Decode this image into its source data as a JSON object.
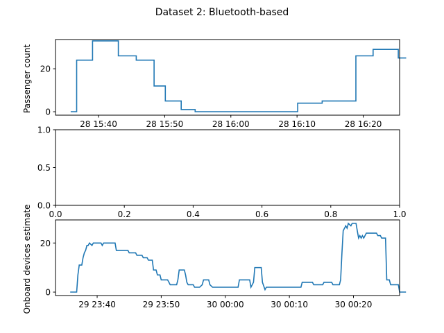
{
  "figure_title": "Dataset 2: Bluetooth-based",
  "chart_data": [
    {
      "type": "line",
      "step": true,
      "title": "",
      "xlabel": "",
      "ylabel": "Passenger count",
      "x_unit": "minutes since 28 15:00",
      "xlim": [
        33.5,
        85.5
      ],
      "ylim": [
        -1.6,
        33.6
      ],
      "xticks": [
        {
          "value": 40,
          "label": "28 15:40"
        },
        {
          "value": 50,
          "label": "28 15:50"
        },
        {
          "value": 60,
          "label": "28 16:00"
        },
        {
          "value": 70,
          "label": "28 16:10"
        },
        {
          "value": 80,
          "label": "28 16:20"
        }
      ],
      "yticks": [
        {
          "value": 0,
          "label": "0"
        },
        {
          "value": 20,
          "label": "20"
        }
      ],
      "series": [
        {
          "color": "#1f77b4",
          "points": [
            [
              35.8,
              0
            ],
            [
              36.7,
              0
            ],
            [
              36.7,
              24
            ],
            [
              39.1,
              24
            ],
            [
              39.1,
              33
            ],
            [
              43.0,
              33
            ],
            [
              43.0,
              26
            ],
            [
              45.7,
              26
            ],
            [
              45.7,
              24
            ],
            [
              48.4,
              24
            ],
            [
              48.4,
              12
            ],
            [
              50.1,
              12
            ],
            [
              50.1,
              5
            ],
            [
              52.5,
              5
            ],
            [
              52.5,
              1
            ],
            [
              54.6,
              1
            ],
            [
              54.6,
              0
            ],
            [
              70.1,
              0
            ],
            [
              70.1,
              4
            ],
            [
              73.8,
              4
            ],
            [
              73.8,
              5
            ],
            [
              78.9,
              5
            ],
            [
              78.9,
              26
            ],
            [
              81.5,
              26
            ],
            [
              81.5,
              29
            ],
            [
              85.3,
              29
            ],
            [
              85.3,
              25
            ],
            [
              86.5,
              25
            ]
          ]
        }
      ]
    },
    {
      "type": "line",
      "title": "",
      "xlabel": "",
      "ylabel": "",
      "xlim": [
        0,
        1
      ],
      "ylim": [
        0,
        1
      ],
      "xticks": [
        {
          "value": 0.0,
          "label": "0.0"
        },
        {
          "value": 0.2,
          "label": "0.2"
        },
        {
          "value": 0.4,
          "label": "0.4"
        },
        {
          "value": 0.6,
          "label": "0.6"
        },
        {
          "value": 0.8,
          "label": "0.8"
        },
        {
          "value": 1.0,
          "label": "1.0"
        }
      ],
      "yticks": [
        {
          "value": 0.0,
          "label": "0.0"
        },
        {
          "value": 0.5,
          "label": "0.5"
        },
        {
          "value": 1.0,
          "label": "1.0"
        }
      ],
      "series": []
    },
    {
      "type": "line",
      "step": true,
      "title": "",
      "xlabel": "",
      "ylabel": "Onboard devices estimate",
      "x_unit": "minutes since 29 23:00",
      "xlim": [
        33.5,
        87.2
      ],
      "ylim": [
        -1.4,
        29.4
      ],
      "xticks": [
        {
          "value": 40,
          "label": "29 23:40"
        },
        {
          "value": 50,
          "label": "29 23:50"
        },
        {
          "value": 60,
          "label": "30 00:00"
        },
        {
          "value": 70,
          "label": "30 00:10"
        },
        {
          "value": 80,
          "label": "30 00:20"
        }
      ],
      "yticks": [
        {
          "value": 0,
          "label": "0"
        },
        {
          "value": 20,
          "label": "20"
        }
      ],
      "series": [
        {
          "color": "#1f77b4",
          "points": [
            [
              35.8,
              0
            ],
            [
              36.8,
              0
            ],
            [
              37.0,
              7
            ],
            [
              37.2,
              11
            ],
            [
              37.6,
              11
            ],
            [
              37.8,
              14
            ],
            [
              38.0,
              16
            ],
            [
              38.2,
              17
            ],
            [
              38.4,
              19
            ],
            [
              38.6,
              19
            ],
            [
              38.8,
              20
            ],
            [
              39.2,
              19
            ],
            [
              39.4,
              20
            ],
            [
              40.6,
              20
            ],
            [
              40.8,
              19
            ],
            [
              41.0,
              20
            ],
            [
              42.8,
              20
            ],
            [
              43.0,
              17
            ],
            [
              44.8,
              17
            ],
            [
              45.0,
              16
            ],
            [
              46.0,
              16
            ],
            [
              46.2,
              15
            ],
            [
              47.0,
              15
            ],
            [
              47.2,
              14
            ],
            [
              47.8,
              14
            ],
            [
              48.0,
              13
            ],
            [
              48.6,
              13
            ],
            [
              48.8,
              9
            ],
            [
              49.2,
              9
            ],
            [
              49.4,
              7
            ],
            [
              49.8,
              7
            ],
            [
              50.0,
              5
            ],
            [
              51.0,
              5
            ],
            [
              51.2,
              4
            ],
            [
              51.4,
              3
            ],
            [
              52.4,
              3
            ],
            [
              52.6,
              5
            ],
            [
              52.8,
              9
            ],
            [
              53.6,
              9
            ],
            [
              53.8,
              7
            ],
            [
              54.0,
              4
            ],
            [
              54.2,
              3
            ],
            [
              55.0,
              3
            ],
            [
              55.2,
              2
            ],
            [
              56.0,
              2
            ],
            [
              56.4,
              3
            ],
            [
              56.6,
              5
            ],
            [
              57.4,
              5
            ],
            [
              57.6,
              3
            ],
            [
              58.0,
              2
            ],
            [
              62.0,
              2
            ],
            [
              62.2,
              5
            ],
            [
              63.8,
              5
            ],
            [
              64.0,
              2
            ],
            [
              64.4,
              4
            ],
            [
              64.6,
              10
            ],
            [
              65.6,
              10
            ],
            [
              65.8,
              4
            ],
            [
              66.2,
              1
            ],
            [
              66.4,
              2
            ],
            [
              71.8,
              2
            ],
            [
              72.0,
              4
            ],
            [
              73.6,
              4
            ],
            [
              73.8,
              3
            ],
            [
              75.2,
              3
            ],
            [
              75.4,
              4
            ],
            [
              76.6,
              4
            ],
            [
              76.8,
              3
            ],
            [
              77.8,
              3
            ],
            [
              78.0,
              5
            ],
            [
              78.2,
              16
            ],
            [
              78.4,
              25
            ],
            [
              78.6,
              26
            ],
            [
              78.8,
              27
            ],
            [
              79.0,
              26
            ],
            [
              79.2,
              28
            ],
            [
              79.6,
              27
            ],
            [
              79.8,
              28
            ],
            [
              80.4,
              28
            ],
            [
              80.6,
              25
            ],
            [
              80.8,
              22
            ],
            [
              81.0,
              23
            ],
            [
              81.2,
              22
            ],
            [
              81.4,
              23
            ],
            [
              81.6,
              22
            ],
            [
              82.0,
              24
            ],
            [
              83.6,
              24
            ],
            [
              83.8,
              23
            ],
            [
              84.2,
              23
            ],
            [
              84.4,
              22
            ],
            [
              85.0,
              22
            ],
            [
              85.2,
              5
            ],
            [
              85.6,
              5
            ],
            [
              85.8,
              3
            ],
            [
              87.0,
              3
            ],
            [
              87.2,
              0
            ],
            [
              88.2,
              0
            ]
          ]
        }
      ]
    }
  ]
}
